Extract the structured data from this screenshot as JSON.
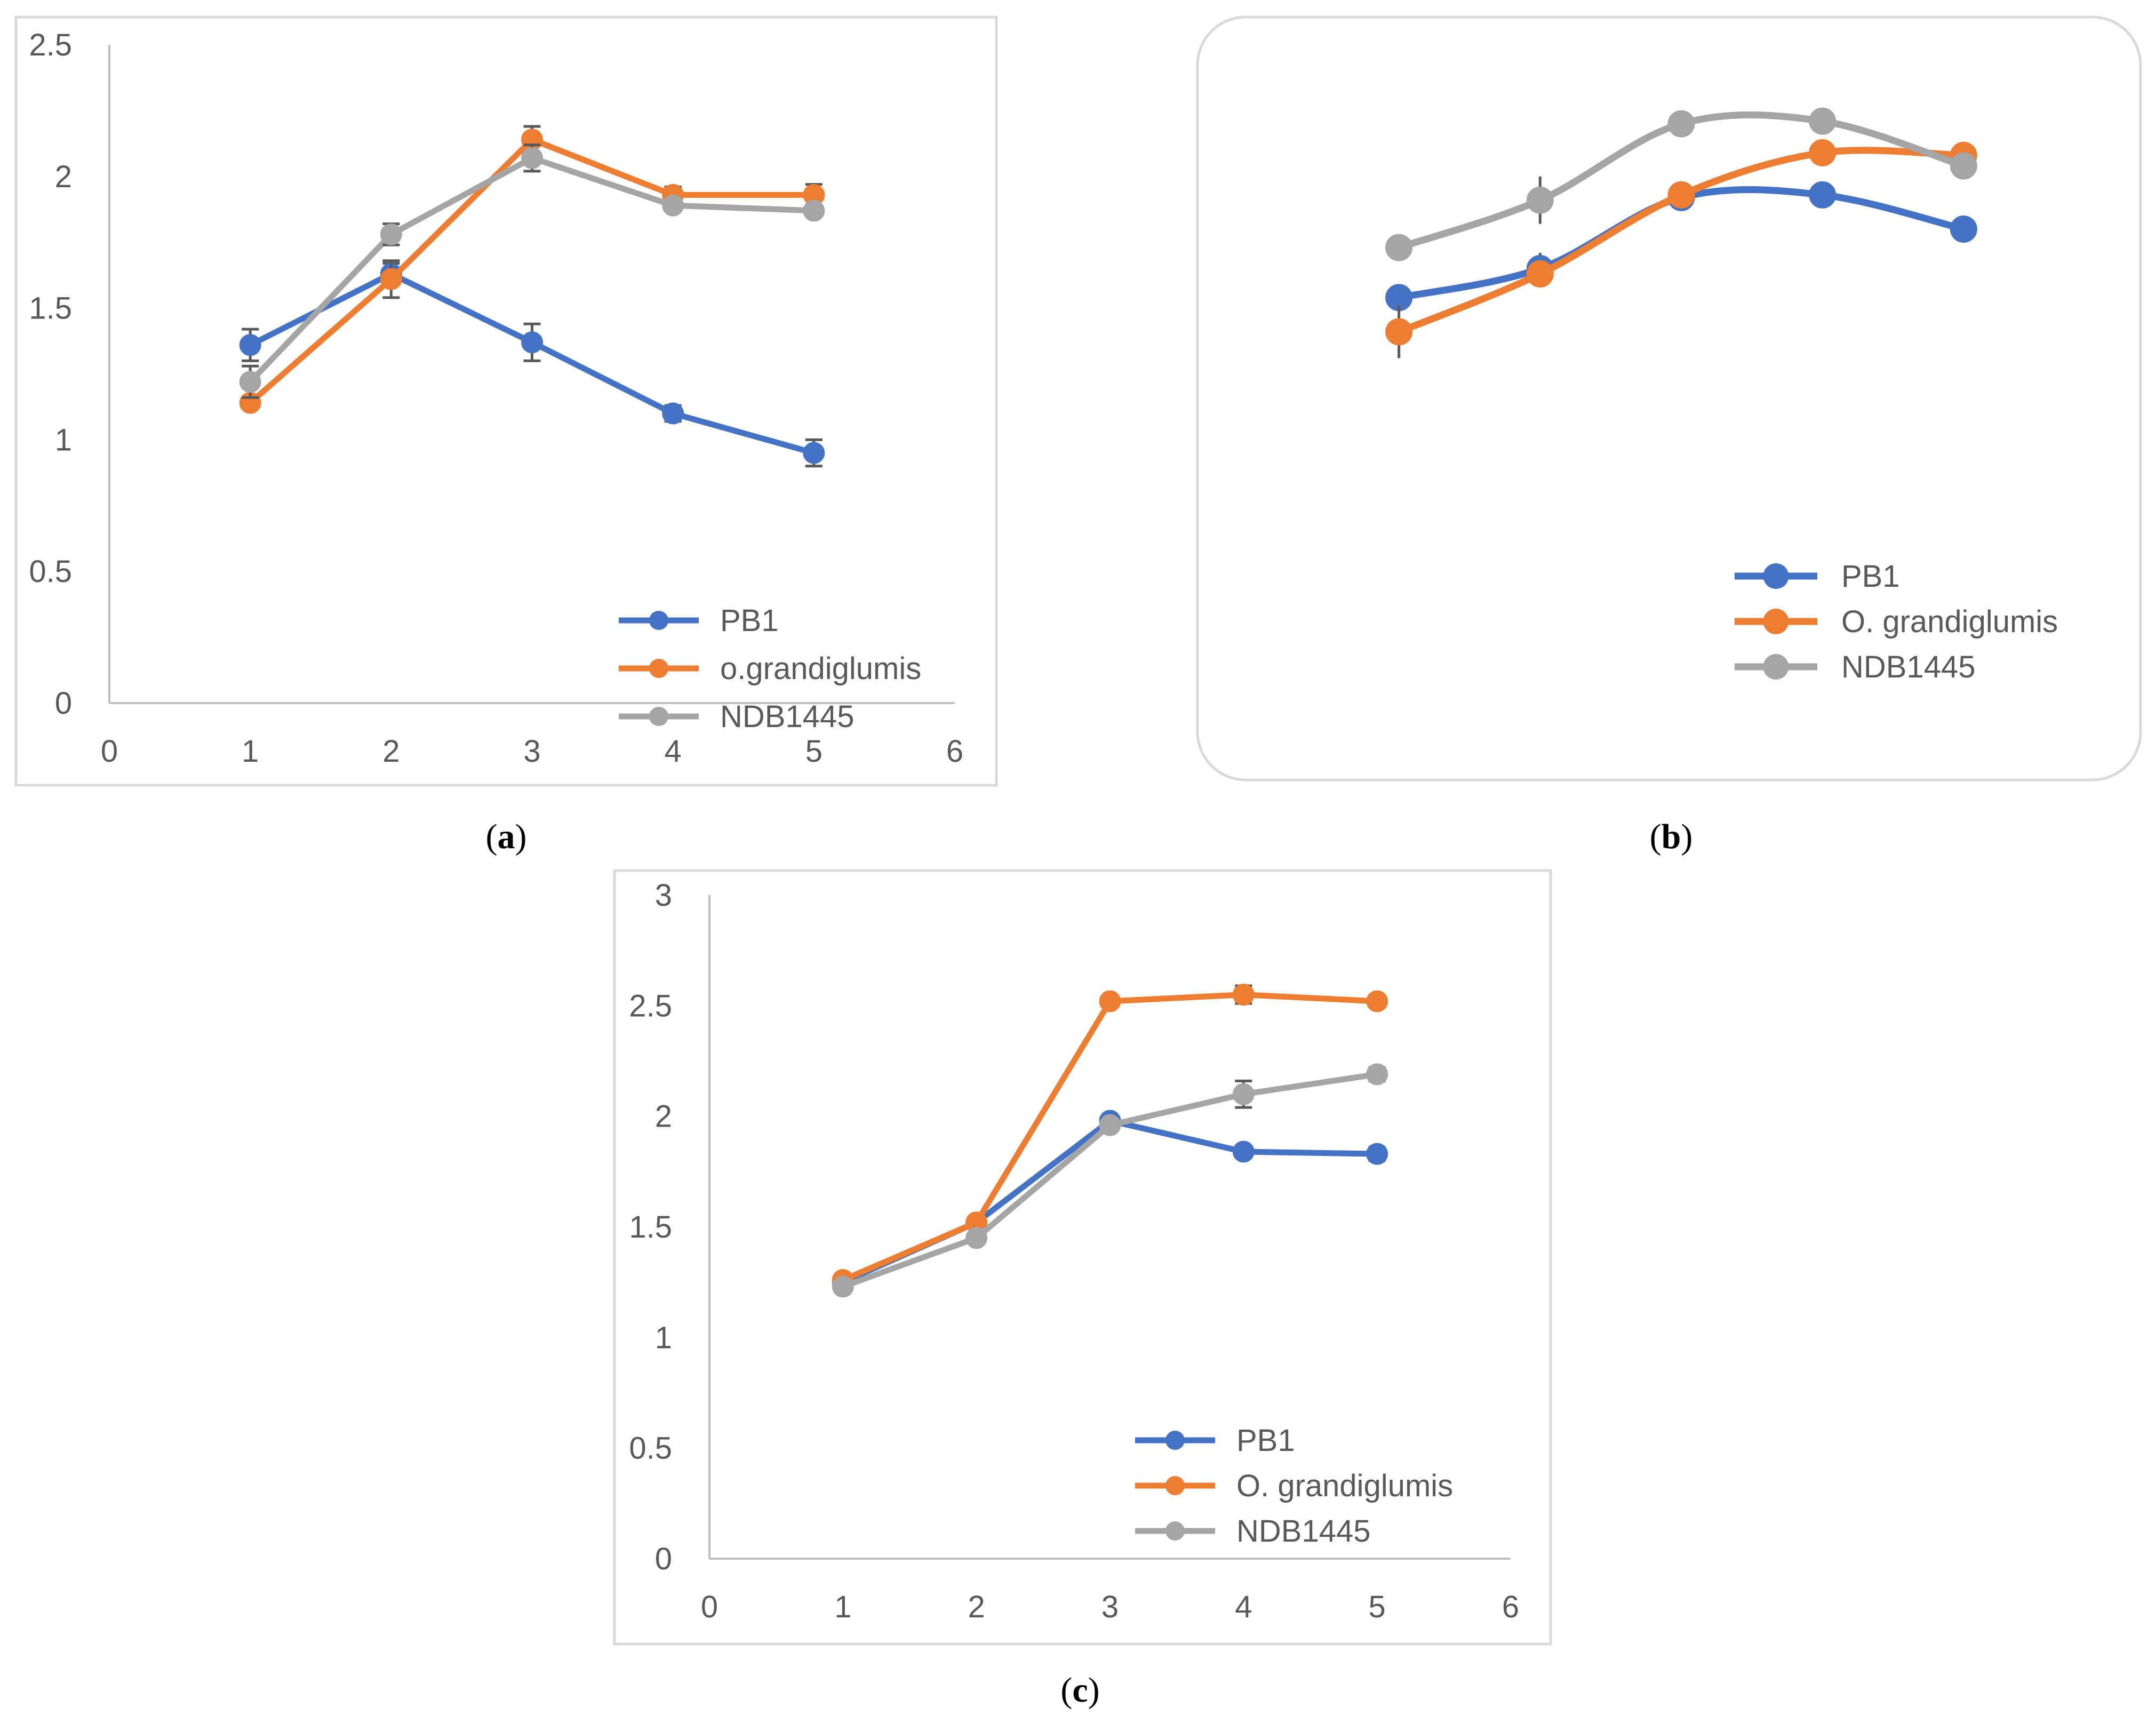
{
  "chart_data": [
    {
      "id": "a",
      "type": "line",
      "caption_letter": "a",
      "smooth": false,
      "x_ticks": [
        "0",
        "1",
        "2",
        "3",
        "4",
        "5",
        "6"
      ],
      "y_ticks": [
        "0",
        "0.5",
        "1",
        "1.5",
        "2",
        "2.5"
      ],
      "xlim": [
        0,
        6
      ],
      "ylim": [
        0,
        2.5
      ],
      "grid": false,
      "legend_position": "bottom-right",
      "x": [
        1,
        2,
        3,
        4,
        5
      ],
      "series": [
        {
          "name": "PB1",
          "color": "#4472C4",
          "values": [
            1.36,
            1.63,
            1.37,
            1.1,
            0.95
          ],
          "errors": [
            0.06,
            0.04,
            0.07,
            0.03,
            0.05
          ]
        },
        {
          "name": "o.grandiglumis",
          "color": "#ED7D31",
          "values": [
            1.14,
            1.61,
            2.14,
            1.93,
            1.93
          ],
          "errors": [
            0.02,
            0.07,
            0.05,
            0.03,
            0.04
          ]
        },
        {
          "name": "NDB1445",
          "color": "#A5A5A5",
          "values": [
            1.22,
            1.78,
            2.07,
            1.89,
            1.87
          ],
          "errors": [
            0.06,
            0.04,
            0.05,
            0.02,
            0.02
          ]
        }
      ]
    },
    {
      "id": "b",
      "type": "line",
      "caption_letter": "b",
      "smooth": true,
      "x_ticks": [],
      "y_ticks": [],
      "xlim": [
        0,
        6
      ],
      "ylim": [
        0,
        2.5
      ],
      "grid": false,
      "legend_position": "bottom-right",
      "x": [
        1,
        2,
        3,
        4,
        5
      ],
      "series": [
        {
          "name": "PB1",
          "color": "#4472C4",
          "values": [
            1.54,
            1.65,
            1.92,
            1.93,
            1.8
          ],
          "errors": [
            0.0,
            0.06,
            0.0,
            0.05,
            0.0
          ]
        },
        {
          "name": "O. grandiglumis",
          "color": "#ED7D31",
          "values": [
            1.41,
            1.63,
            1.93,
            2.09,
            2.08
          ],
          "errors": [
            0.1,
            0.0,
            0.0,
            0.0,
            0.0
          ]
        },
        {
          "name": "NDB1445",
          "color": "#A5A5A5",
          "values": [
            1.73,
            1.91,
            2.2,
            2.21,
            2.04
          ],
          "errors": [
            0.05,
            0.09,
            0.0,
            0.0,
            0.0
          ]
        }
      ]
    },
    {
      "id": "c",
      "type": "line",
      "caption_letter": "c",
      "smooth": false,
      "x_ticks": [
        "0",
        "1",
        "2",
        "3",
        "4",
        "5",
        "6"
      ],
      "y_ticks": [
        "0",
        "0.5",
        "1",
        "1.5",
        "2",
        "2.5",
        "3"
      ],
      "xlim": [
        0,
        6
      ],
      "ylim": [
        0,
        3
      ],
      "grid": false,
      "legend_position": "bottom-right",
      "x": [
        1,
        2,
        3,
        4,
        5
      ],
      "series": [
        {
          "name": "PB1",
          "color": "#4472C4",
          "values": [
            1.25,
            1.52,
            1.98,
            1.84,
            1.83
          ],
          "errors": [
            0.0,
            0.0,
            0.0,
            0.0,
            0.03
          ]
        },
        {
          "name": "O. grandiglumis",
          "color": "#ED7D31",
          "values": [
            1.26,
            1.52,
            2.52,
            2.55,
            2.52
          ],
          "errors": [
            0.0,
            0.0,
            0.02,
            0.04,
            0.02
          ]
        },
        {
          "name": "NDB1445",
          "color": "#A5A5A5",
          "values": [
            1.23,
            1.45,
            1.96,
            2.1,
            2.19
          ],
          "errors": [
            0.0,
            0.0,
            0.0,
            0.06,
            0.03
          ]
        }
      ]
    }
  ]
}
